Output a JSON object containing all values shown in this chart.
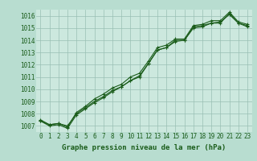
{
  "xlabel": "Graphe pression niveau de la mer (hPa)",
  "background_color": "#b8ddd0",
  "plot_bg_color": "#cce8de",
  "grid_color": "#99bfb3",
  "line_color": "#1a5c1a",
  "x": [
    0,
    1,
    2,
    3,
    4,
    5,
    6,
    7,
    8,
    9,
    10,
    11,
    12,
    13,
    14,
    15,
    16,
    17,
    18,
    19,
    20,
    21,
    22,
    23
  ],
  "series1": [
    1007.4,
    1007.1,
    1007.2,
    1007.0,
    1008.0,
    1008.5,
    1009.0,
    1009.4,
    1009.9,
    1010.2,
    1010.7,
    1011.0,
    1012.1,
    1013.2,
    1013.4,
    1013.9,
    1014.0,
    1015.0,
    1015.1,
    1015.4,
    1015.5,
    1016.1,
    1015.4,
    1015.2
  ],
  "series2": [
    1007.4,
    1007.0,
    1007.1,
    1006.8,
    1007.9,
    1008.4,
    1008.9,
    1009.3,
    1009.8,
    1010.2,
    1010.7,
    1011.1,
    1012.1,
    1013.2,
    1013.4,
    1014.0,
    1014.0,
    1015.1,
    1015.2,
    1015.4,
    1015.4,
    1016.2,
    1015.4,
    1015.1
  ],
  "series3": [
    1007.5,
    1007.1,
    1007.2,
    1006.9,
    1008.1,
    1008.6,
    1009.2,
    1009.6,
    1010.1,
    1010.4,
    1011.0,
    1011.3,
    1012.3,
    1013.4,
    1013.6,
    1014.1,
    1014.1,
    1015.2,
    1015.3,
    1015.6,
    1015.6,
    1016.3,
    1015.5,
    1015.3
  ],
  "ylim": [
    1006.5,
    1016.5
  ],
  "yticks": [
    1007,
    1008,
    1009,
    1010,
    1011,
    1012,
    1013,
    1014,
    1015,
    1016
  ],
  "xlim": [
    -0.5,
    23.5
  ],
  "marker": "+",
  "markersize": 3,
  "linewidth": 0.8,
  "tick_fontsize": 5.5,
  "xlabel_fontsize": 6.5
}
